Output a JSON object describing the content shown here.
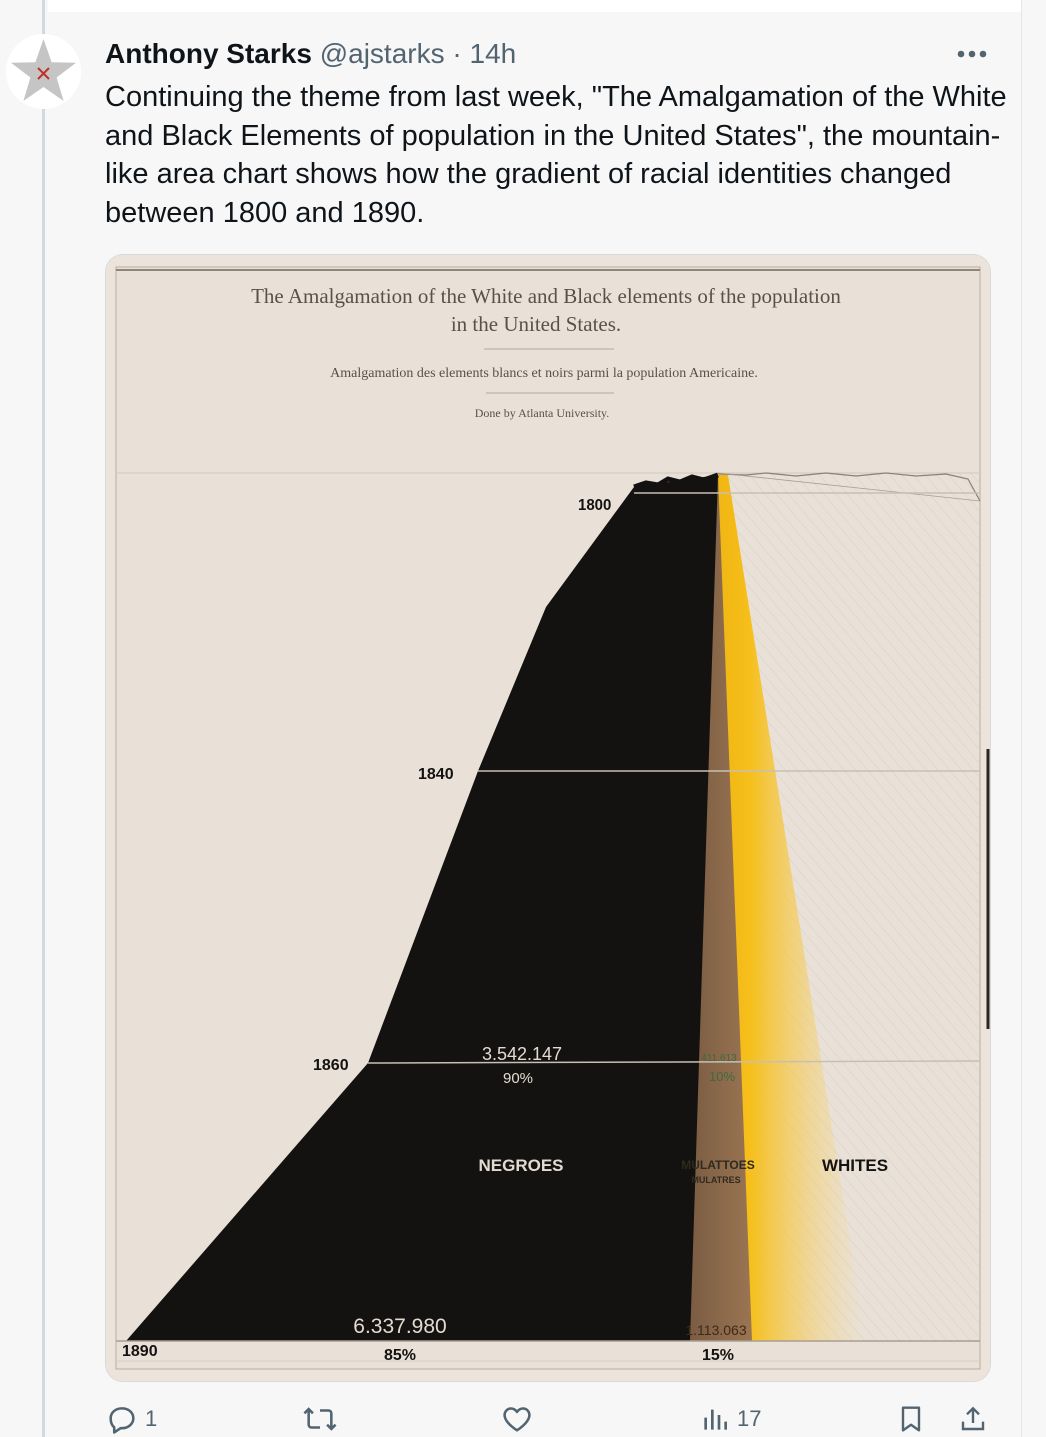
{
  "tweet": {
    "author_name": "Anthony Starks",
    "handle": "@ajstarks",
    "separator": "·",
    "time": "14h",
    "text": "Continuing the theme from last week, \"The Amalgamation of the White and Black Elements of population in the United States\", the mountain-like area chart shows how the gradient of racial identities changed between 1800 and 1890."
  },
  "actions": {
    "replies": "1",
    "views": "17"
  },
  "icons": [
    "star-avatar-icon",
    "more-icon",
    "reply-icon",
    "retweet-icon",
    "like-icon",
    "views-icon",
    "bookmark-icon",
    "share-icon"
  ],
  "chart": {
    "title_line1": "The Amalgamation of the White and Black elements of the population",
    "title_line2": "in the United States.",
    "subtitle": "Amalgamation des elements blancs et noirs parmi la population Americaine.",
    "credit": "Done by Atlanta University.",
    "years": [
      "1800",
      "1840",
      "1860",
      "1890"
    ],
    "negroes_label": "NEGROES",
    "mulattoes_label": "MULATTOES",
    "mulattoes_label_fr": "MULATRES",
    "whites_label": "WHITES",
    "negroes_1860_count": "3.542.147",
    "negroes_1860_pct": "90%",
    "mulattoes_1860_count": "411.613",
    "mulattoes_1860_pct": "10%",
    "negroes_1890_count": "6.337.980",
    "negroes_1890_pct": "85%",
    "mulattoes_1890_count": "1.113.063",
    "mulattoes_1890_pct": "15%"
  },
  "colors": {
    "paper": "#ece4db",
    "black_area": "#141210",
    "brown_area": "#8a6a4f",
    "gold_area": "#f0b20f",
    "accent_gray": "#536471"
  }
}
